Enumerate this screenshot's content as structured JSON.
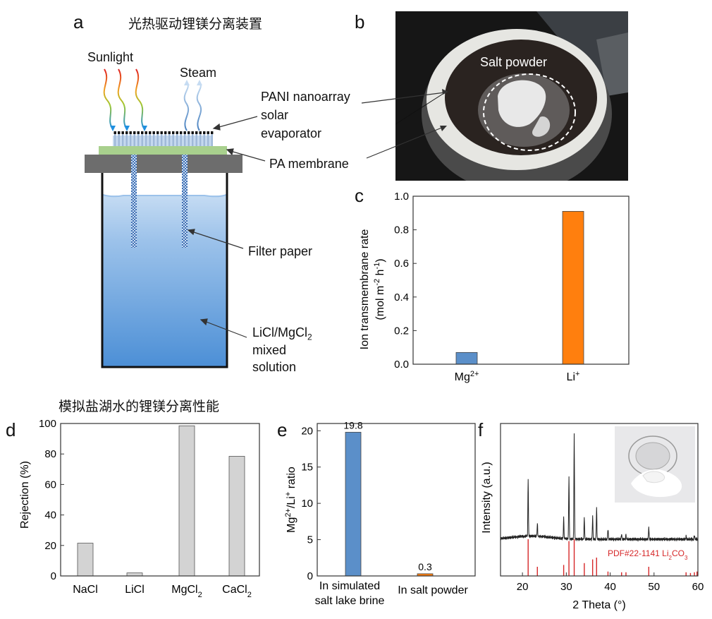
{
  "panels": {
    "a": "a",
    "b": "b",
    "c": "c",
    "d": "d",
    "e": "e",
    "f": "f"
  },
  "titles": {
    "top": "光热驱动锂镁分离装置",
    "bottom": "模拟盐湖水的锂镁分离性能"
  },
  "schematic": {
    "sunlight": "Sunlight",
    "steam": "Steam",
    "evaporator": [
      "PANI nanoarray",
      "solar",
      "evaporator"
    ],
    "membrane": "PA membrane",
    "filter": "Filter paper",
    "solution_1a": "LiCl/MgCl",
    "solution_1b": "2",
    "solution_2": "mixed",
    "solution_3": "solution"
  },
  "photo_b": {
    "label": "Salt powder"
  },
  "colors": {
    "blue": "#5b8fc9",
    "orange": "#ff7f0e",
    "gray": "#d3d3d3",
    "red": "#d62728"
  },
  "chart_data": [
    {
      "id": "c",
      "type": "bar",
      "categories": [
        "Mg2+",
        "Li+"
      ],
      "values": [
        0.07,
        0.91
      ],
      "ylabel": "Ion transmembrane rate (mol m-2 h-1)",
      "ylim": [
        0,
        1.0
      ],
      "yticks": [
        "0.0",
        "0.2",
        "0.4",
        "0.6",
        "0.8",
        "1.0"
      ]
    },
    {
      "id": "d",
      "type": "bar",
      "categories": [
        "NaCl",
        "LiCl",
        "MgCl2",
        "CaCl2"
      ],
      "values": [
        21.5,
        2,
        98.5,
        78.5
      ],
      "ylabel": "Rejection (%)",
      "ylim": [
        0,
        100
      ],
      "yticks": [
        "0",
        "20",
        "40",
        "60",
        "80",
        "100"
      ]
    },
    {
      "id": "e",
      "type": "bar",
      "categories": [
        "In simulated salt lake brine",
        "In salt powder"
      ],
      "values": [
        19.8,
        0.3
      ],
      "data_labels": [
        "19.8",
        "0.3"
      ],
      "ylabel": "Mg2+/Li+ ratio",
      "ylim": [
        0,
        21
      ],
      "yticks": [
        "0",
        "5",
        "10",
        "15",
        "20"
      ]
    },
    {
      "id": "f",
      "type": "line",
      "xlabel": "2 Theta (°)",
      "ylabel": "Intensity (a.u.)",
      "xlim": [
        15,
        60
      ],
      "xticks": [
        "20",
        "30",
        "40",
        "50",
        "60"
      ],
      "reference": "PDF#22-1141 Li2CO3",
      "ref_peaks": [
        [
          21.3,
          1.0
        ],
        [
          23.4,
          0.25
        ],
        [
          29.4,
          0.3
        ],
        [
          30.6,
          0.95
        ],
        [
          31.8,
          1.0
        ],
        [
          34.1,
          0.35
        ],
        [
          36.0,
          0.45
        ],
        [
          36.9,
          0.5
        ],
        [
          39.5,
          0.12
        ],
        [
          42.6,
          0.1
        ],
        [
          43.6,
          0.1
        ],
        [
          48.8,
          0.25
        ],
        [
          57.3,
          0.1
        ],
        [
          58.3,
          0.08
        ],
        [
          59.2,
          0.1
        ],
        [
          59.8,
          0.12
        ]
      ],
      "peaks": [
        [
          21.3,
          0.55
        ],
        [
          23.4,
          0.12
        ],
        [
          29.4,
          0.2
        ],
        [
          30.6,
          0.6
        ],
        [
          31.8,
          1.0
        ],
        [
          34.1,
          0.2
        ],
        [
          36.0,
          0.22
        ],
        [
          36.9,
          0.3
        ],
        [
          39.5,
          0.1
        ],
        [
          42.6,
          0.05
        ],
        [
          43.6,
          0.04
        ],
        [
          48.8,
          0.12
        ],
        [
          57.3,
          0.03
        ],
        [
          59.2,
          0.04
        ]
      ]
    }
  ]
}
